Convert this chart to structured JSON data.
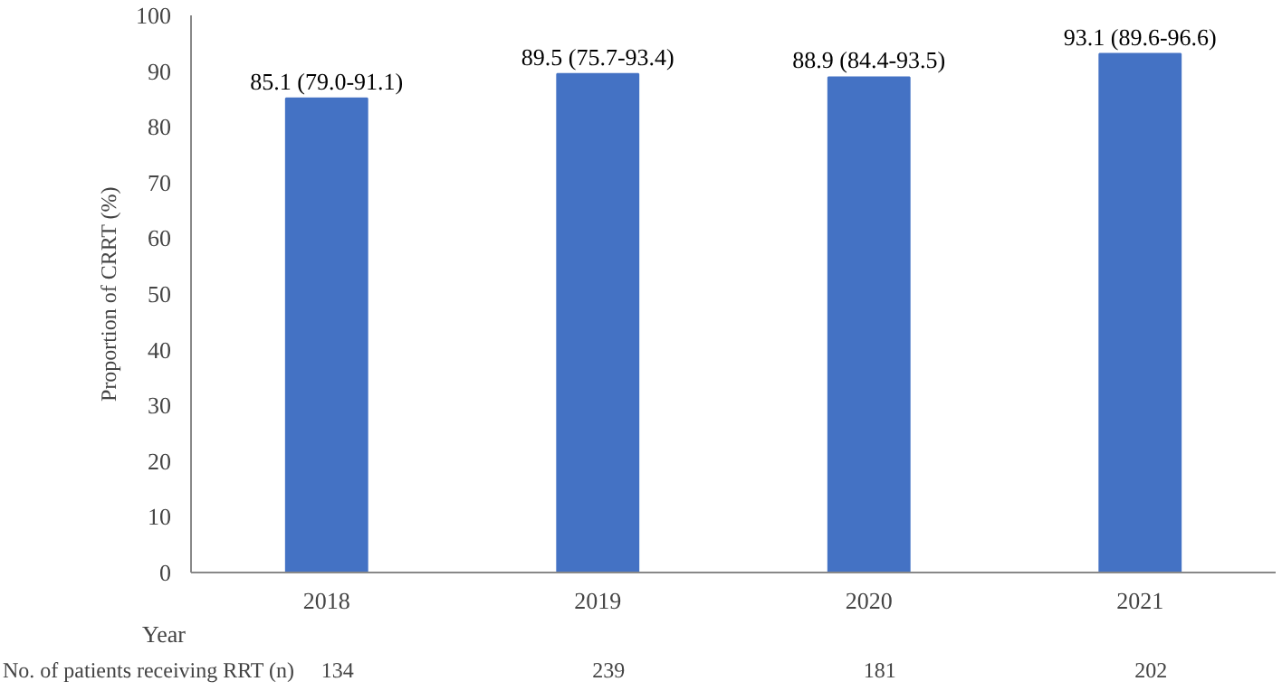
{
  "chart_data": {
    "type": "bar",
    "ylabel": "Proportion of CRRT (%)",
    "xlabel": "Year",
    "categories": [
      "2018",
      "2019",
      "2020",
      "2021"
    ],
    "values": [
      85.1,
      89.5,
      88.9,
      93.1
    ],
    "value_labels": [
      "85.1 (79.0-91.1)",
      "89.5 (75.7-93.4)",
      "88.9 (84.4-93.5)",
      "93.1 (89.6-96.6)"
    ],
    "color": "#4472c4",
    "ylim": [
      0,
      100
    ],
    "yticks": [
      0,
      10,
      20,
      30,
      40,
      50,
      60,
      70,
      80,
      90,
      100
    ],
    "grid": false,
    "annotations": [
      "No. of patients receiving RRT (n)",
      "134",
      "239",
      "181",
      "202"
    ]
  }
}
